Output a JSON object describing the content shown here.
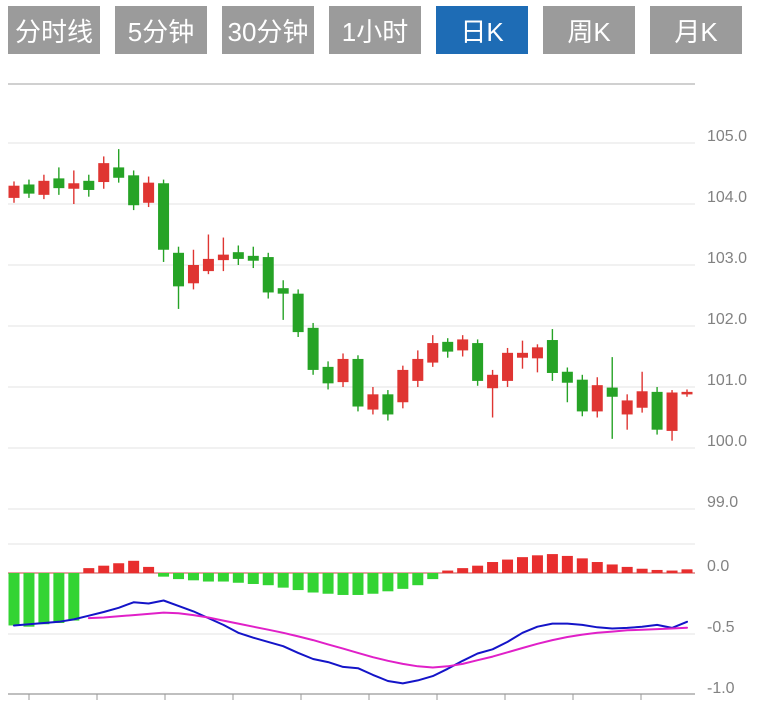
{
  "tabs": [
    {
      "label": "分时线",
      "active": false
    },
    {
      "label": "5分钟",
      "active": false
    },
    {
      "label": "30分钟",
      "active": false
    },
    {
      "label": "1小时",
      "active": false
    },
    {
      "label": "日K",
      "active": true
    },
    {
      "label": "周K",
      "active": false
    },
    {
      "label": "月K",
      "active": false
    }
  ],
  "tab_colors": {
    "inactive_bg": "#9b9b9b",
    "active_bg": "#1e6cb5",
    "text": "#ffffff"
  },
  "chart_data": {
    "type": "candlestick",
    "period_selected": "日K",
    "colors": {
      "up": "#df3532",
      "down": "#26a326",
      "hist_up": "#e82e2e",
      "hist_down": "#33d433",
      "dif_line": "#1414c8",
      "dea_line": "#e020c8",
      "zero_line": "#cc4444",
      "gridline": "#e3e3e3",
      "axis": "#999999",
      "label": "#828282"
    },
    "panels": [
      {
        "name": "price",
        "y_ticks": [
          "105.0",
          "104.0",
          "103.0",
          "102.0",
          "101.0",
          "100.0",
          "99.0"
        ],
        "y_tick_values": [
          105,
          104,
          103,
          102,
          101,
          100,
          99
        ],
        "ylim": [
          98.6,
          106.0
        ],
        "candles": [
          {
            "o": 104.1,
            "h": 104.37,
            "l": 104.02,
            "c": 104.3
          },
          {
            "o": 104.32,
            "h": 104.4,
            "l": 104.1,
            "c": 104.17
          },
          {
            "o": 104.15,
            "h": 104.48,
            "l": 104.08,
            "c": 104.38
          },
          {
            "o": 104.42,
            "h": 104.6,
            "l": 104.15,
            "c": 104.26
          },
          {
            "o": 104.25,
            "h": 104.55,
            "l": 104.0,
            "c": 104.34
          },
          {
            "o": 104.38,
            "h": 104.48,
            "l": 104.12,
            "c": 104.23
          },
          {
            "o": 104.36,
            "h": 104.78,
            "l": 104.25,
            "c": 104.67
          },
          {
            "o": 104.6,
            "h": 104.9,
            "l": 104.35,
            "c": 104.43
          },
          {
            "o": 104.47,
            "h": 104.55,
            "l": 103.9,
            "c": 103.98
          },
          {
            "o": 104.02,
            "h": 104.45,
            "l": 103.95,
            "c": 104.35
          },
          {
            "o": 104.34,
            "h": 104.4,
            "l": 103.05,
            "c": 103.25
          },
          {
            "o": 103.2,
            "h": 103.3,
            "l": 102.28,
            "c": 102.65
          },
          {
            "o": 102.7,
            "h": 103.25,
            "l": 102.6,
            "c": 103.0
          },
          {
            "o": 102.9,
            "h": 103.5,
            "l": 102.85,
            "c": 103.1
          },
          {
            "o": 103.08,
            "h": 103.45,
            "l": 102.9,
            "c": 103.17
          },
          {
            "o": 103.21,
            "h": 103.32,
            "l": 103.0,
            "c": 103.1
          },
          {
            "o": 103.15,
            "h": 103.3,
            "l": 102.95,
            "c": 103.07
          },
          {
            "o": 103.13,
            "h": 103.2,
            "l": 102.45,
            "c": 102.55
          },
          {
            "o": 102.62,
            "h": 102.75,
            "l": 102.1,
            "c": 102.53
          },
          {
            "o": 102.53,
            "h": 102.6,
            "l": 101.82,
            "c": 101.9
          },
          {
            "o": 101.97,
            "h": 102.05,
            "l": 101.2,
            "c": 101.28
          },
          {
            "o": 101.33,
            "h": 101.42,
            "l": 100.96,
            "c": 101.06
          },
          {
            "o": 101.08,
            "h": 101.55,
            "l": 101.0,
            "c": 101.46
          },
          {
            "o": 101.46,
            "h": 101.52,
            "l": 100.6,
            "c": 100.68
          },
          {
            "o": 100.63,
            "h": 101.0,
            "l": 100.55,
            "c": 100.88
          },
          {
            "o": 100.88,
            "h": 100.95,
            "l": 100.45,
            "c": 100.55
          },
          {
            "o": 100.75,
            "h": 101.35,
            "l": 100.65,
            "c": 101.28
          },
          {
            "o": 101.1,
            "h": 101.6,
            "l": 101.0,
            "c": 101.46
          },
          {
            "o": 101.4,
            "h": 101.85,
            "l": 101.33,
            "c": 101.72
          },
          {
            "o": 101.74,
            "h": 101.8,
            "l": 101.48,
            "c": 101.58
          },
          {
            "o": 101.6,
            "h": 101.85,
            "l": 101.5,
            "c": 101.78
          },
          {
            "o": 101.72,
            "h": 101.78,
            "l": 101.02,
            "c": 101.1
          },
          {
            "o": 100.98,
            "h": 101.28,
            "l": 100.5,
            "c": 101.2
          },
          {
            "o": 101.1,
            "h": 101.64,
            "l": 101.0,
            "c": 101.56
          },
          {
            "o": 101.48,
            "h": 101.76,
            "l": 101.3,
            "c": 101.56
          },
          {
            "o": 101.47,
            "h": 101.7,
            "l": 101.24,
            "c": 101.65
          },
          {
            "o": 101.77,
            "h": 101.95,
            "l": 101.1,
            "c": 101.23
          },
          {
            "o": 101.25,
            "h": 101.32,
            "l": 100.75,
            "c": 101.07
          },
          {
            "o": 101.12,
            "h": 101.2,
            "l": 100.52,
            "c": 100.6
          },
          {
            "o": 100.6,
            "h": 101.16,
            "l": 100.5,
            "c": 101.03
          },
          {
            "o": 100.99,
            "h": 101.49,
            "l": 100.15,
            "c": 100.84
          },
          {
            "o": 100.55,
            "h": 100.88,
            "l": 100.3,
            "c": 100.78
          },
          {
            "o": 100.66,
            "h": 101.25,
            "l": 100.58,
            "c": 100.93
          },
          {
            "o": 100.92,
            "h": 101.0,
            "l": 100.22,
            "c": 100.3
          },
          {
            "o": 100.28,
            "h": 100.95,
            "l": 100.12,
            "c": 100.91
          },
          {
            "o": 100.88,
            "h": 100.96,
            "l": 100.84,
            "c": 100.92
          }
        ]
      },
      {
        "name": "macd",
        "y_ticks": [
          "0.0",
          "-0.5",
          "-1.0"
        ],
        "y_tick_values": [
          0,
          -0.5,
          -1
        ],
        "ylim": [
          -1.05,
          0.27
        ],
        "histogram": [
          -0.43,
          -0.44,
          -0.42,
          -0.41,
          -0.39,
          0.04,
          0.06,
          0.08,
          0.1,
          0.05,
          -0.03,
          -0.05,
          -0.06,
          -0.07,
          -0.07,
          -0.08,
          -0.09,
          -0.1,
          -0.12,
          -0.14,
          -0.16,
          -0.17,
          -0.18,
          -0.18,
          -0.17,
          -0.15,
          -0.13,
          -0.1,
          -0.05,
          0.02,
          0.04,
          0.06,
          0.09,
          0.11,
          0.13,
          0.145,
          0.155,
          0.14,
          0.12,
          0.09,
          0.07,
          0.05,
          0.035,
          0.025,
          0.02,
          0.03
        ],
        "series": [
          {
            "name": "DIF",
            "color": "#1414c8",
            "values": [
              -0.43,
              -0.42,
              -0.41,
              -0.4,
              -0.38,
              -0.35,
              -0.32,
              -0.285,
              -0.24,
              -0.25,
              -0.225,
              -0.27,
              -0.315,
              -0.37,
              -0.425,
              -0.49,
              -0.53,
              -0.565,
              -0.6,
              -0.655,
              -0.705,
              -0.73,
              -0.77,
              -0.78,
              -0.835,
              -0.885,
              -0.905,
              -0.88,
              -0.845,
              -0.785,
              -0.72,
              -0.66,
              -0.625,
              -0.565,
              -0.49,
              -0.44,
              -0.415,
              -0.415,
              -0.425,
              -0.445,
              -0.455,
              -0.45,
              -0.44,
              -0.425,
              -0.45,
              -0.4
            ]
          },
          {
            "name": "DEA",
            "color": "#e020c8",
            "values": [
              null,
              null,
              null,
              null,
              null,
              -0.37,
              -0.365,
              -0.355,
              -0.345,
              -0.335,
              -0.325,
              -0.33,
              -0.345,
              -0.365,
              -0.39,
              -0.415,
              -0.44,
              -0.465,
              -0.49,
              -0.52,
              -0.55,
              -0.585,
              -0.62,
              -0.655,
              -0.69,
              -0.72,
              -0.745,
              -0.765,
              -0.775,
              -0.765,
              -0.745,
              -0.715,
              -0.685,
              -0.65,
              -0.615,
              -0.58,
              -0.55,
              -0.525,
              -0.505,
              -0.49,
              -0.48,
              -0.47,
              -0.465,
              -0.46,
              -0.455,
              -0.448
            ]
          }
        ]
      }
    ]
  }
}
